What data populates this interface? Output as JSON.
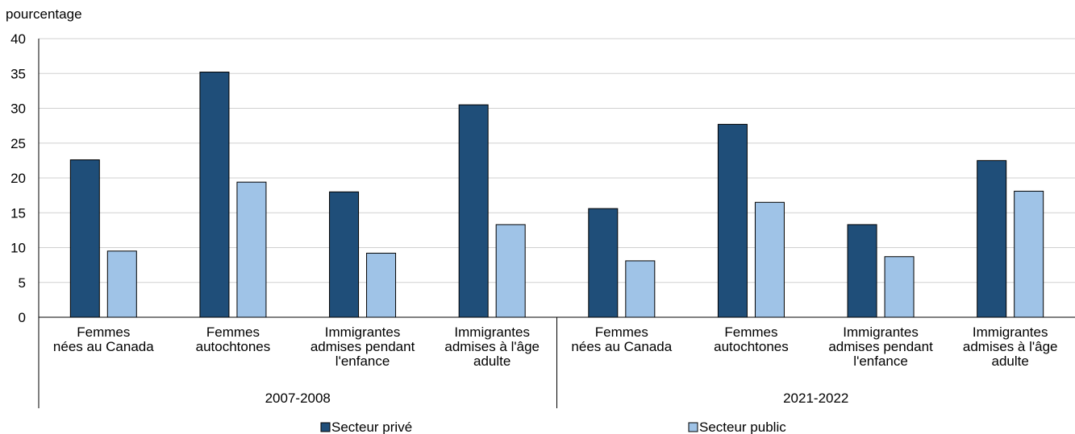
{
  "chart_data": {
    "type": "bar",
    "ylabel": "pourcentage",
    "ylim": [
      0,
      40
    ],
    "yticks": [
      0,
      5,
      10,
      15,
      20,
      25,
      30,
      35,
      40
    ],
    "grid": true,
    "legend_position": "bottom",
    "groups": [
      {
        "label": "2007-2008",
        "categories": [
          [
            "Femmes",
            "nées au Canada"
          ],
          [
            "Femmes",
            "autochtones"
          ],
          [
            "Immigrantes",
            "admises pendant",
            "l'enfance"
          ],
          [
            "Immigrantes",
            "admises à l'âge",
            "adulte"
          ]
        ]
      },
      {
        "label": "2021-2022",
        "categories": [
          [
            "Femmes",
            "nées au Canada"
          ],
          [
            "Femmes",
            "autochtones"
          ],
          [
            "Immigrantes",
            "admises pendant",
            "l'enfance"
          ],
          [
            "Immigrantes",
            "admises à l'âge",
            "adulte"
          ]
        ]
      }
    ],
    "series": [
      {
        "name": "Secteur privé",
        "color": "#1f4e79",
        "values": [
          22.6,
          35.2,
          18.0,
          30.5,
          15.6,
          27.7,
          13.3,
          22.5
        ]
      },
      {
        "name": "Secteur public",
        "color": "#9fc3e7",
        "values": [
          9.5,
          19.4,
          9.2,
          13.3,
          8.1,
          16.5,
          8.7,
          18.1
        ]
      }
    ]
  }
}
